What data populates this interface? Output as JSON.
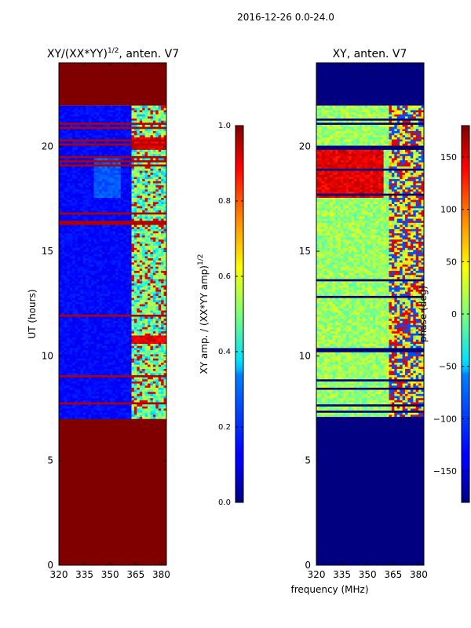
{
  "figure": {
    "suptitle": "2016-12-26 0.0-24.0",
    "shared_xlabel": "frequency (MHz)"
  },
  "chart_data": [
    {
      "type": "heatmap",
      "name": "amplitude-panel",
      "title_main": "XY/(XX*YY)",
      "title_exponent": "1/2",
      "title_suffix": ", anten. V7",
      "xlabel": "",
      "ylabel": "UT (hours)",
      "xlim": [
        320,
        383
      ],
      "ylim": [
        0,
        24
      ],
      "xticks": [
        320,
        335,
        350,
        365,
        380
      ],
      "yticks": [
        0,
        5,
        10,
        15,
        20
      ],
      "colormap": "jet",
      "colorbar": {
        "label_main": "XY amp. / (XX*YY amp)",
        "label_exponent": "1/2",
        "range": [
          0.0,
          1.0
        ],
        "ticks": [
          "0.0",
          "0.2",
          "0.4",
          "0.6",
          "0.8",
          "1.0"
        ]
      },
      "data_time_range_hours": [
        7.0,
        21.95
      ],
      "flagged_value": 1.0,
      "description_values": {
        "background_low_freq": 0.1,
        "high_freq_band_mhz": [
          362,
          382
        ]
      }
    },
    {
      "type": "heatmap",
      "name": "phase-panel",
      "title": "XY, anten. V7",
      "xlabel": "frequency (MHz)",
      "ylabel": "",
      "xlim": [
        320,
        383
      ],
      "ylim": [
        0,
        24
      ],
      "xticks": [
        320,
        335,
        350,
        365,
        380
      ],
      "yticks": [
        0,
        5,
        10,
        15,
        20
      ],
      "colormap": "jet",
      "colorbar": {
        "label": "phase (deg)",
        "range": [
          -180,
          180
        ],
        "ticks": [
          "150",
          "100",
          "50",
          "0",
          "−50",
          "−100",
          "−150"
        ]
      },
      "data_time_range_hours": [
        7.0,
        21.95
      ],
      "flagged_value": -180
    }
  ]
}
